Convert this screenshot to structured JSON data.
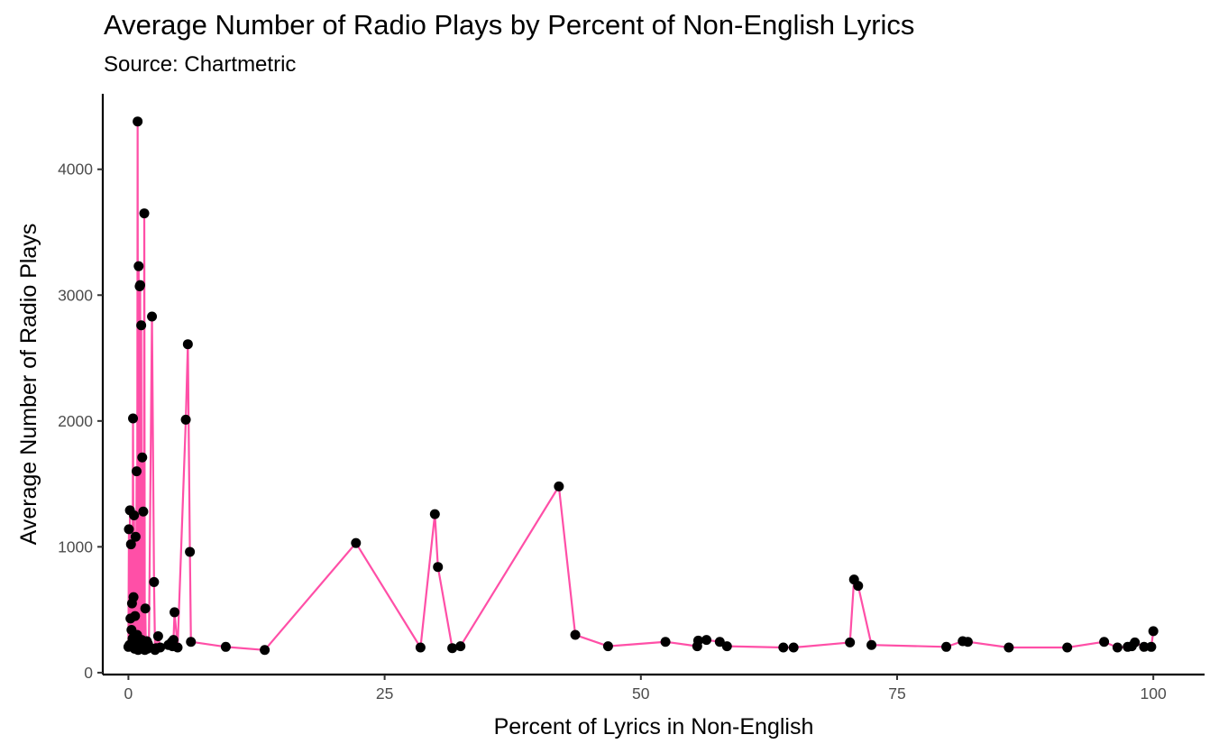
{
  "chart_data": {
    "type": "line",
    "title": "Average Number of Radio Plays by Percent of Non-English Lyrics",
    "subtitle": "Source: Chartmetric",
    "xlabel": "Percent of Lyrics in Non-English",
    "ylabel": "Average Number of Radio Plays",
    "xlim": [
      -2.5,
      105
    ],
    "ylim": [
      -15,
      4600
    ],
    "xticks": [
      0,
      25,
      50,
      75,
      100
    ],
    "yticks": [
      0,
      1000,
      2000,
      3000,
      4000
    ],
    "grid": false,
    "legend": "none",
    "line_color": "#ff4fa7",
    "point_color": "#000000",
    "series": [
      {
        "x": [
          0.0,
          0.05,
          0.1,
          0.15,
          0.2,
          0.25,
          0.3,
          0.35,
          0.4,
          0.45,
          0.5,
          0.55,
          0.6,
          0.65,
          0.7,
          0.75,
          0.8,
          0.85,
          0.9,
          0.95,
          1.0,
          1.05,
          1.1,
          1.15,
          1.2,
          1.25,
          1.3,
          1.35,
          1.4,
          1.45,
          1.5,
          1.55,
          1.6,
          1.65,
          1.7,
          1.75,
          1.8,
          1.85,
          1.9,
          2.0,
          2.3,
          2.5,
          2.6,
          2.7,
          2.9,
          3.1,
          3.9,
          4.2,
          4.3,
          4.4,
          4.5,
          4.8,
          5.6,
          5.8,
          6.0,
          6.1,
          9.5,
          13.3,
          22.2,
          28.5,
          29.9,
          30.2,
          31.6,
          32.4,
          42.0,
          43.6,
          46.8,
          52.4,
          55.5,
          55.6,
          56.4,
          57.7,
          58.4,
          63.9,
          64.9,
          70.4,
          70.8,
          71.2,
          72.5,
          79.8,
          81.4,
          81.9,
          85.9,
          91.6,
          95.2,
          96.5,
          97.5,
          97.9,
          98.2,
          99.1,
          99.8,
          100.0
        ],
        "y": [
          205,
          1140,
          220,
          1290,
          430,
          1020,
          340,
          550,
          270,
          2020,
          600,
          1250,
          190,
          450,
          1080,
          230,
          1600,
          300,
          4380,
          180,
          3230,
          250,
          3070,
          3080,
          200,
          2760,
          260,
          1710,
          190,
          1280,
          230,
          3650,
          180,
          510,
          220,
          240,
          250,
          190,
          230,
          210,
          2830,
          720,
          180,
          195,
          290,
          200,
          220,
          240,
          210,
          260,
          480,
          200,
          2010,
          2610,
          960,
          245,
          205,
          180,
          1030,
          200,
          1260,
          840,
          195,
          210,
          1480,
          300,
          210,
          245,
          210,
          255,
          260,
          245,
          210,
          200,
          200,
          240,
          740,
          690,
          220,
          205,
          250,
          245,
          200,
          200,
          245,
          200,
          205,
          210,
          240,
          205,
          205,
          330
        ]
      }
    ]
  }
}
